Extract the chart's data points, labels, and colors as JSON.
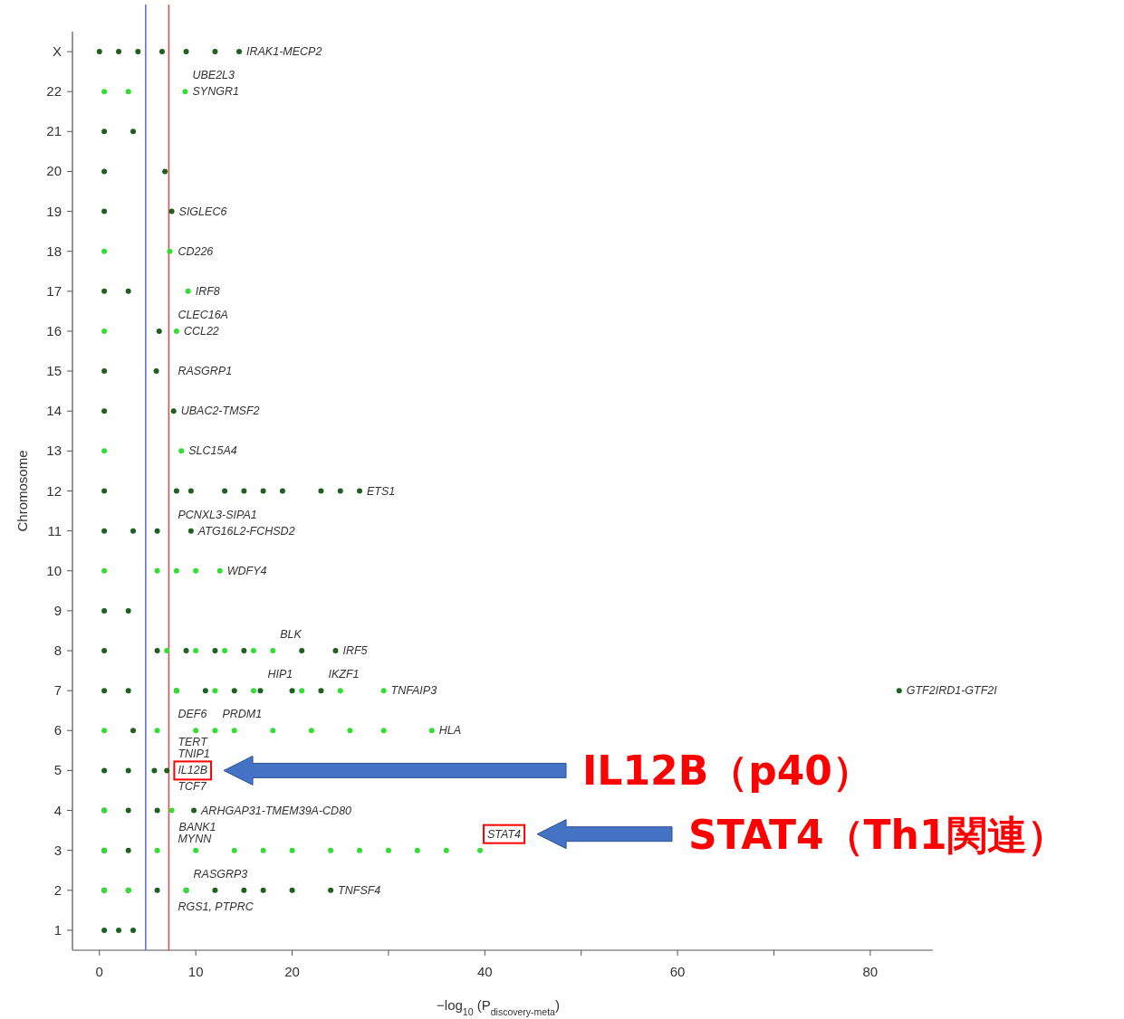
{
  "chart_data": {
    "type": "scatter",
    "orientation": "horizontal",
    "xlabel": "−log$_{10}$ (P$_{discovery-meta}$)",
    "ylabel": "Chromosome",
    "marker": "circle",
    "categories": [
      "X",
      "22",
      "21",
      "20",
      "19",
      "18",
      "17",
      "16",
      "15",
      "14",
      "13",
      "12",
      "11",
      "10",
      "9",
      "8",
      "7",
      "6",
      "5",
      "4",
      "3",
      "2",
      "1"
    ],
    "xlim": [
      -2.8,
      86.5
    ],
    "xticks": [
      0,
      10,
      20,
      {
        "value": 30,
        "label": null
      },
      40,
      {
        "value": 50,
        "label": null
      },
      60,
      {
        "value": 70,
        "label": null
      },
      80
    ],
    "series": [
      {
        "color": "#1f5f1f",
        "x": [
          "X",
          "X",
          "X",
          "X",
          "X",
          "X",
          "X",
          "21",
          "21",
          "20",
          "20",
          "19",
          "19",
          "17",
          "17",
          "16",
          "15",
          "15",
          "14",
          "14",
          "12",
          "12",
          "12",
          "12",
          "12",
          "12",
          "12",
          "12",
          "12",
          "12",
          "11",
          "11",
          "11",
          "11",
          "9",
          "9",
          "8",
          "8",
          "8",
          "8",
          "8",
          "8",
          "8",
          "7",
          "7",
          "7",
          "7",
          "7",
          "7",
          "7",
          "7",
          "7",
          "6",
          "5",
          "5",
          "5",
          "5",
          "4",
          "4",
          "4",
          "4",
          "3",
          "3",
          "2",
          "2",
          "2",
          "2",
          "2",
          "2",
          "2",
          "2",
          "2",
          "1",
          "1",
          "1"
        ],
        "values": [
          0,
          2,
          4,
          6.5,
          9,
          12,
          14.5,
          0.5,
          3.5,
          0.5,
          6.8,
          0.5,
          7.5,
          0.5,
          3,
          6.2,
          0.5,
          5.9,
          0.5,
          7.7,
          0.5,
          8,
          9.5,
          13,
          15,
          17,
          19,
          23,
          25,
          27,
          0.5,
          3.5,
          6,
          9.5,
          0.5,
          3,
          0.5,
          6,
          9,
          12,
          15,
          21,
          24.5,
          0.5,
          3,
          8,
          11,
          14,
          16.7,
          20,
          23,
          83,
          3.5,
          0.5,
          3,
          5.7,
          7,
          0.5,
          3,
          6,
          9.8,
          0.5,
          3,
          0.5,
          3,
          6,
          9,
          12,
          15,
          17,
          20,
          24,
          0.5,
          2,
          3.5
        ]
      },
      {
        "color": "#33dd33",
        "x": [
          "22",
          "22",
          "22",
          "18",
          "18",
          "17",
          "16",
          "16",
          "13",
          "13",
          "10",
          "10",
          "10",
          "10",
          "10",
          "8",
          "8",
          "8",
          "8",
          "8",
          "7",
          "7",
          "7",
          "7",
          "7",
          "7",
          "6",
          "6",
          "6",
          "6",
          "6",
          "6",
          "6",
          "6",
          "6",
          "6",
          "4",
          "4",
          "3",
          "3",
          "3",
          "3",
          "3",
          "3",
          "3",
          "3",
          "3",
          "3",
          "3",
          "3",
          "2",
          "2",
          "2"
        ],
        "values": [
          0.5,
          3,
          8.9,
          0.5,
          7.3,
          9.2,
          0.5,
          8,
          0.5,
          8.5,
          0.5,
          6,
          8,
          10,
          12.5,
          7,
          10,
          13,
          16,
          18,
          8,
          12,
          16,
          21,
          25,
          29.5,
          0.5,
          6,
          10,
          12,
          14,
          18,
          22,
          26,
          29.5,
          34.5,
          0.5,
          7.5,
          0.5,
          6,
          10,
          14,
          17,
          20,
          24,
          27,
          30,
          33,
          36,
          39.5,
          0.5,
          3,
          9
        ]
      }
    ],
    "ref_lines": [
      {
        "axis": "x",
        "value": 4.8,
        "color": "#5566ee"
      },
      {
        "axis": "x",
        "value": 7.2,
        "color": "#ee4444"
      }
    ],
    "annotations": [
      {
        "text": "IRAK1-MECP2",
        "x": 14.5,
        "y": "X"
      },
      {
        "text": "SYNGR1",
        "x": 8.9,
        "y": "22"
      },
      {
        "text": "UBE2L3",
        "x": 8.9,
        "y": "22"
      },
      {
        "text": "SIGLEC6",
        "x": 7.5,
        "y": "19"
      },
      {
        "text": "CD226",
        "x": 7.3,
        "y": "18"
      },
      {
        "text": "IRF8",
        "x": 9.2,
        "y": "17"
      },
      {
        "text": "CCL22",
        "x": 8,
        "y": "16"
      },
      {
        "text": "CLEC16A",
        "x": 6.2,
        "y": "16"
      },
      {
        "text": "RASGRP1",
        "x": 5.9,
        "y": "15"
      },
      {
        "text": "UBAC2-TMSF2",
        "x": 7.7,
        "y": "14"
      },
      {
        "text": "SLC15A4",
        "x": 8.5,
        "y": "13"
      },
      {
        "text": "ETS1",
        "x": 27,
        "y": "12"
      },
      {
        "text": "ATG16L2-FCHSD2",
        "x": 9.5,
        "y": "11"
      },
      {
        "text": "PCNXL3-SIPA1",
        "x": 6,
        "y": "11"
      },
      {
        "text": "WDFY4",
        "x": 12.5,
        "y": "10"
      },
      {
        "text": "BLK",
        "x": 18,
        "y": "8"
      },
      {
        "text": "IRF5",
        "x": 24.5,
        "y": "8"
      },
      {
        "text": "HIP1",
        "x": 16.7,
        "y": "7"
      },
      {
        "text": "GTF2IRD1-GTF2I",
        "x": 83,
        "y": "7"
      },
      {
        "text": "IKZF1",
        "x": 23,
        "y": "7"
      },
      {
        "text": "TNFAIP3",
        "x": 29.5,
        "y": "7"
      },
      {
        "text": "PRDM1",
        "x": 12,
        "y": "6"
      },
      {
        "text": "DEF6",
        "x": 6,
        "y": "6"
      },
      {
        "text": "IL12B",
        "x": 7,
        "y": "5"
      },
      {
        "text": "HLA",
        "x": 34.5,
        "y": "6"
      },
      {
        "text": "TNIP1",
        "x": 7,
        "y": "5"
      },
      {
        "text": "TCF7",
        "x": 5.7,
        "y": "5"
      },
      {
        "text": "TERT",
        "x": 5.7,
        "y": "5"
      },
      {
        "text": "BANK1",
        "x": 7.5,
        "y": "4"
      },
      {
        "text": "MYNN",
        "x": 6,
        "y": "4"
      },
      {
        "text": "ARHGAP31-TMEM39A-CD80",
        "x": 9.8,
        "y": "4"
      },
      {
        "text": "STAT4",
        "x": 39.5,
        "y": "3"
      },
      {
        "text": "RASGRP3",
        "x": 9,
        "y": "2"
      },
      {
        "text": "RGS1, PTPRC",
        "x": 6,
        "y": "2"
      },
      {
        "text": "TNFSF4",
        "x": 24,
        "y": "2"
      },
      "IL12B（p40）",
      "STAT4（Th1関連）"
    ]
  }
}
